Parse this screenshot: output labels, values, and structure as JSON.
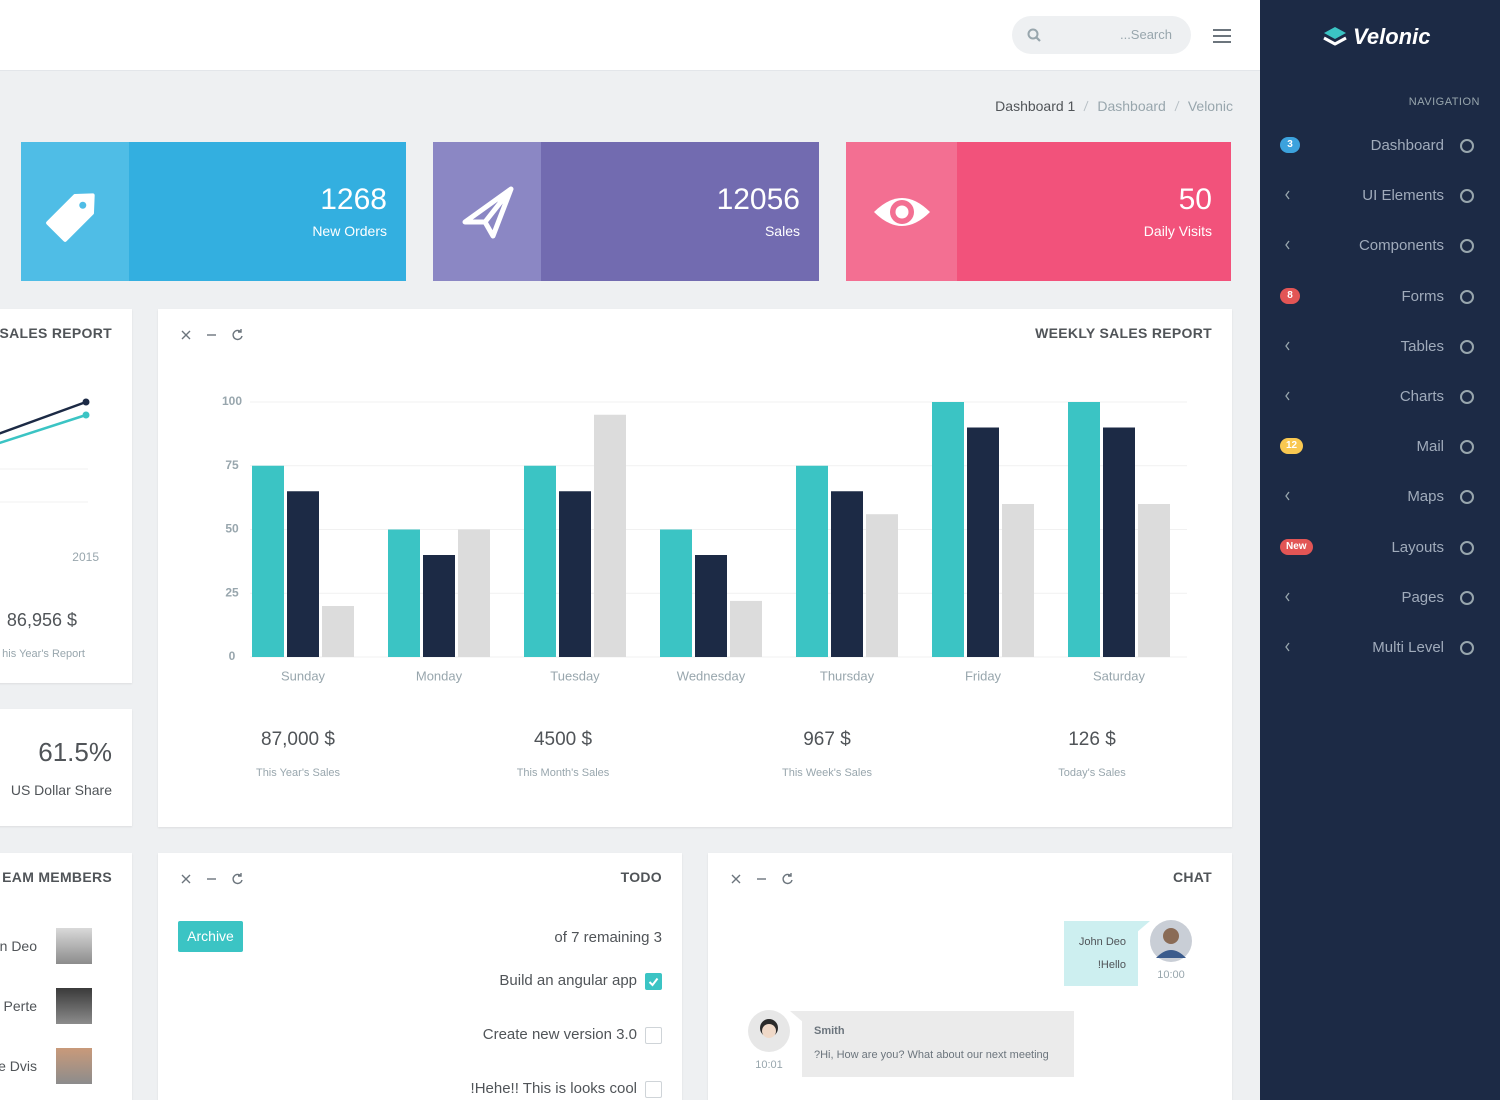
{
  "header": {
    "search_placeholder": "...Search"
  },
  "breadcrumb": [
    "Dashboard 1",
    "Dashboard",
    "Velonic"
  ],
  "stats": [
    {
      "value": 1268,
      "label": "New Orders"
    },
    {
      "value": 12056,
      "label": "Sales"
    },
    {
      "value": 50,
      "label": "Daily Visits"
    }
  ],
  "sales_report": {
    "title": "SALES REPORT",
    "x_label": "2015",
    "total": "86,956 $",
    "caption": "his Year's Report"
  },
  "share": {
    "value": "61.5%",
    "label": "US Dollar Share"
  },
  "weekly_summary": [
    {
      "value": "87,000 $",
      "label": "This Year's Sales"
    },
    {
      "value": "4500 $",
      "label": "This Month's Sales"
    },
    {
      "value": "967 $",
      "label": "This Week's Sales"
    },
    {
      "value": "126 $",
      "label": "Today's Sales"
    }
  ],
  "chart_data": {
    "type": "bar",
    "title": "WEEKLY SALES REPORT",
    "categories": [
      "Sunday",
      "Monday",
      "Tuesday",
      "Wednesday",
      "Thursday",
      "Friday",
      "Saturday"
    ],
    "series": [
      {
        "color": "#3bc4c4",
        "values": [
          75,
          50,
          75,
          50,
          75,
          100,
          100
        ]
      },
      {
        "color": "#1c2a45",
        "values": [
          65,
          40,
          65,
          40,
          65,
          90,
          90
        ]
      },
      {
        "color": "#dcdcdc",
        "values": [
          20,
          50,
          95,
          22,
          56,
          60,
          60
        ]
      }
    ],
    "ylim": [
      0,
      100
    ],
    "yticks": [
      0,
      25,
      50,
      75,
      100
    ],
    "grid": true
  },
  "team": {
    "title": "EAM MEMBERS",
    "members": [
      "n Deo",
      "Perte",
      "e Dvis"
    ]
  },
  "todo": {
    "title": "TODO",
    "archive": "Archive",
    "remaining": "of 7 remaining 3",
    "items": [
      {
        "text": "Build an angular app",
        "done": true
      },
      {
        "text": "Create new version 3.0",
        "done": false
      },
      {
        "text": "!Hehe!! This is looks cool",
        "done": false
      }
    ]
  },
  "chat": {
    "title": "CHAT",
    "messages": [
      {
        "name": "John Deo",
        "text": "!Hello",
        "time": "10:00"
      },
      {
        "name": "Smith",
        "text": "?Hi, How are you? What about our next meeting",
        "time": "10:01"
      }
    ]
  },
  "sidebar": {
    "brand": "Velonic",
    "section": "NAVIGATION",
    "items": [
      {
        "label": "Dashboard",
        "badge": "3",
        "badge_color": "#3ca2dd"
      },
      {
        "label": "UI Elements"
      },
      {
        "label": "Components"
      },
      {
        "label": "Forms",
        "badge": "8",
        "badge_color": "#e25555"
      },
      {
        "label": "Tables"
      },
      {
        "label": "Charts"
      },
      {
        "label": "Mail",
        "badge": "12",
        "badge_color": "#f9c851"
      },
      {
        "label": "Maps"
      },
      {
        "label": "Layouts",
        "badge": "New",
        "badge_color": "#e25555"
      },
      {
        "label": "Pages"
      },
      {
        "label": "Multi Level"
      }
    ]
  }
}
